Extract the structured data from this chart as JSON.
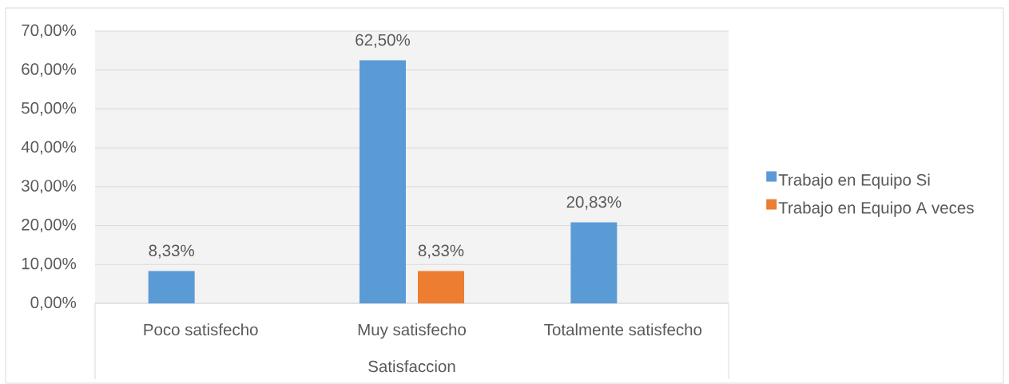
{
  "chart_data": {
    "type": "bar",
    "categories": [
      "Poco satisfecho",
      "Muy satisfecho",
      "Totalmente satisfecho"
    ],
    "xlabel": "Satisfaccion",
    "series": [
      {
        "name": "Trabajo en Equipo Si",
        "color": "#5b9bd5",
        "values": [
          8.33,
          62.5,
          20.83
        ],
        "value_labels": [
          "8,33%",
          "62,50%",
          "20,83%"
        ]
      },
      {
        "name": "Trabajo en Equipo A veces",
        "color": "#ed7d31",
        "values": [
          null,
          8.33,
          null
        ],
        "value_labels": [
          null,
          "8,33%",
          null
        ]
      }
    ],
    "ylim": [
      0,
      70
    ],
    "yticks": [
      {
        "value": 0,
        "label": "0,00%"
      },
      {
        "value": 10,
        "label": "10,00%"
      },
      {
        "value": 20,
        "label": "20,00%"
      },
      {
        "value": 30,
        "label": "30,00%"
      },
      {
        "value": 40,
        "label": "40,00%"
      },
      {
        "value": 50,
        "label": "50,00%"
      },
      {
        "value": 60,
        "label": "60,00%"
      },
      {
        "value": 70,
        "label": "70,00%"
      }
    ],
    "grid": "y",
    "legend": "right"
  }
}
